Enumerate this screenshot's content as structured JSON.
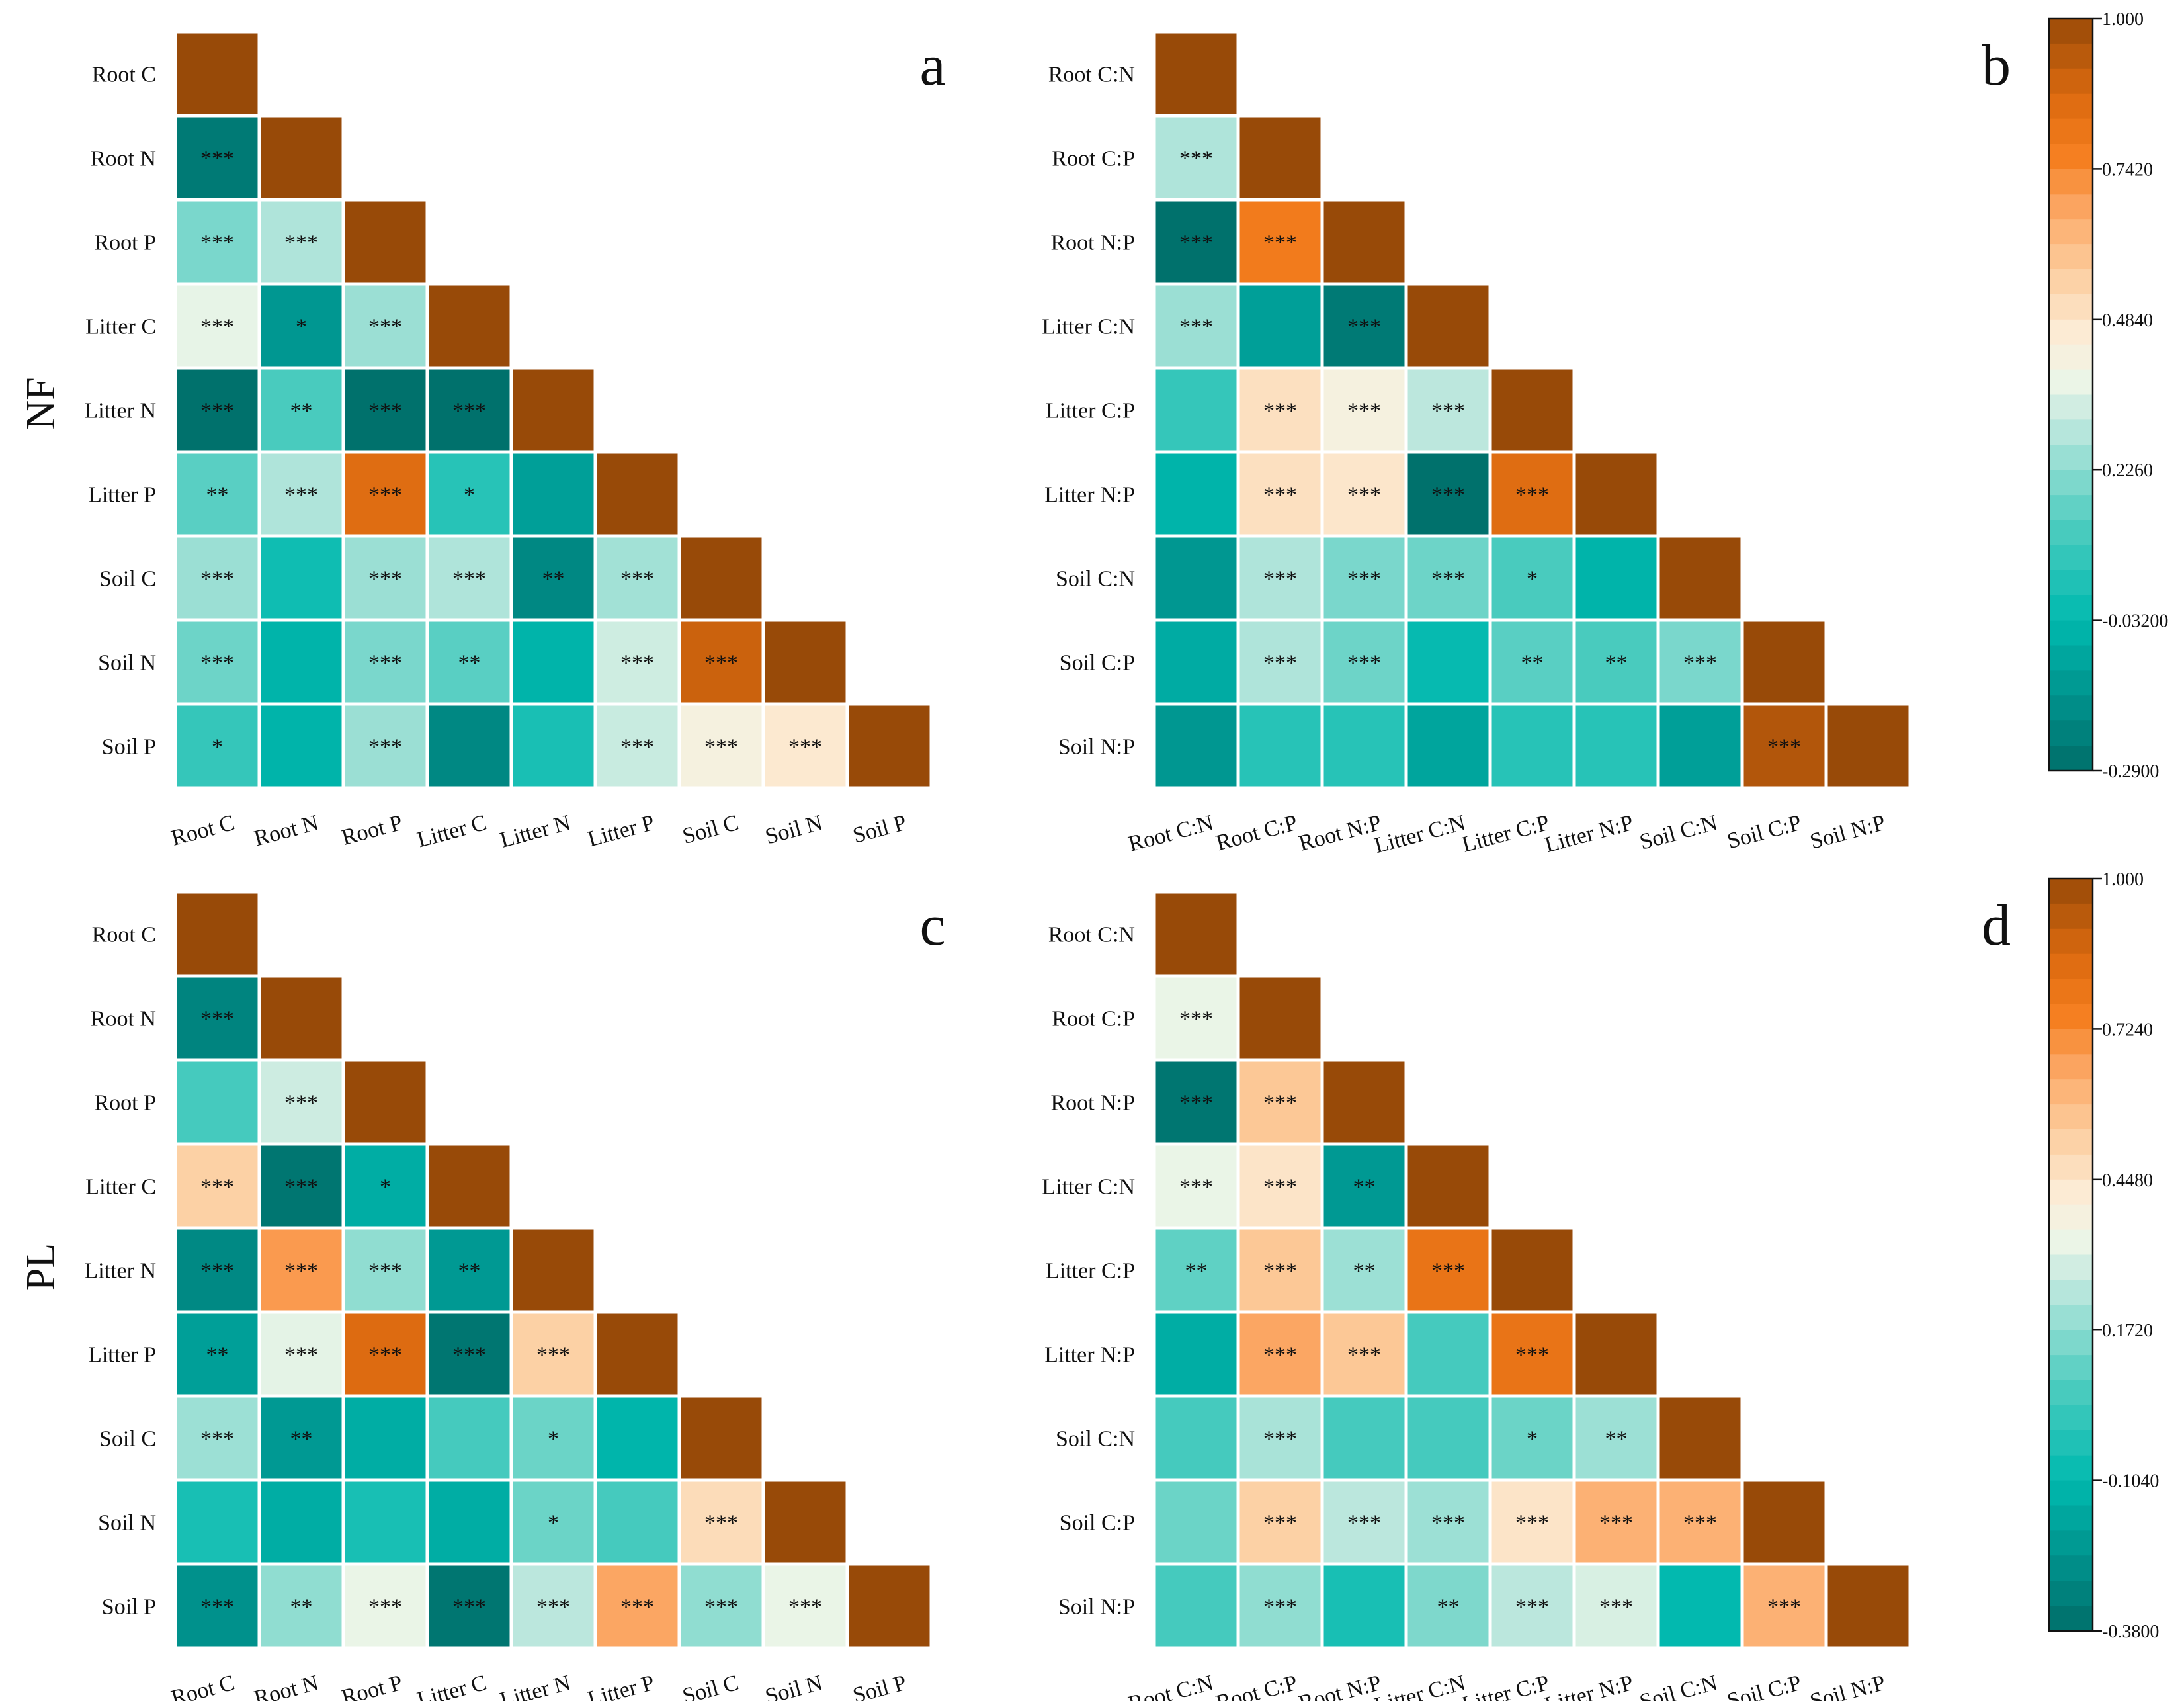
{
  "row_titles": [
    "NF",
    "PL"
  ],
  "chart_data": [
    {
      "type": "heatmap",
      "panel": "a",
      "labels": [
        "Root C",
        "Root N",
        "Root P",
        "Litter C",
        "Litter N",
        "Litter P",
        "Soil C",
        "Soil N",
        "Soil P"
      ],
      "values": [
        [
          1.0
        ],
        [
          -0.25,
          1.0
        ],
        [
          0.2,
          0.28,
          1.0
        ],
        [
          0.37,
          -0.15,
          0.25,
          1.0
        ],
        [
          -0.28,
          0.12,
          -0.28,
          -0.28,
          1.0
        ],
        [
          0.15,
          0.28,
          0.85,
          0.05,
          -0.12,
          1.0
        ],
        [
          0.25,
          0.0,
          0.25,
          0.28,
          -0.2,
          0.26,
          1.0
        ],
        [
          0.18,
          -0.05,
          0.2,
          0.15,
          -0.05,
          0.33,
          0.9,
          1.0
        ],
        [
          0.08,
          -0.05,
          0.25,
          -0.2,
          0.02,
          0.32,
          0.42,
          0.47,
          1.0
        ]
      ],
      "stars": [
        [
          ""
        ],
        [
          "***",
          ""
        ],
        [
          "***",
          "***",
          ""
        ],
        [
          "***",
          "*",
          "***",
          ""
        ],
        [
          "***",
          "**",
          "***",
          "***",
          ""
        ],
        [
          "**",
          "***",
          "***",
          "*",
          "",
          ""
        ],
        [
          "***",
          "",
          "***",
          "***",
          "**",
          "***",
          ""
        ],
        [
          "***",
          "",
          "***",
          "**",
          "",
          "***",
          "***",
          ""
        ],
        [
          "*",
          "",
          "***",
          "",
          "",
          "***",
          "***",
          "***",
          ""
        ]
      ],
      "colorbar": {
        "min": -0.29,
        "max": 1.0,
        "ticks": [
          "1.000",
          "0.7420",
          "0.4840",
          "0.2260",
          "-0.03200",
          "-0.2900"
        ]
      }
    },
    {
      "type": "heatmap",
      "panel": "b",
      "labels": [
        "Root C:N",
        "Root C:P",
        "Root N:P",
        "Litter C:N",
        "Litter C:P",
        "Litter N:P",
        "Soil C:N",
        "Soil C:P",
        "Soil N:P"
      ],
      "values": [
        [
          1.0
        ],
        [
          0.28,
          1.0
        ],
        [
          -0.28,
          0.78,
          1.0
        ],
        [
          0.25,
          -0.12,
          -0.25,
          1.0
        ],
        [
          0.08,
          0.5,
          0.42,
          0.3,
          1.0
        ],
        [
          -0.05,
          0.5,
          0.48,
          -0.28,
          0.85,
          1.0
        ],
        [
          -0.15,
          0.28,
          0.2,
          0.18,
          0.12,
          -0.05,
          1.0
        ],
        [
          -0.08,
          0.28,
          0.18,
          -0.02,
          0.15,
          0.12,
          0.2,
          1.0
        ],
        [
          -0.15,
          0.05,
          0.05,
          -0.1,
          0.05,
          0.05,
          -0.12,
          0.95,
          1.0
        ]
      ],
      "stars": [
        [
          ""
        ],
        [
          "***",
          ""
        ],
        [
          "***",
          "***",
          ""
        ],
        [
          "***",
          "",
          "***",
          ""
        ],
        [
          "",
          "***",
          "***",
          "***",
          ""
        ],
        [
          "",
          "***",
          "***",
          "***",
          "***",
          ""
        ],
        [
          "",
          "***",
          "***",
          "***",
          "*",
          "",
          ""
        ],
        [
          "",
          "***",
          "***",
          "",
          "**",
          "**",
          "***",
          ""
        ],
        [
          "",
          "",
          "",
          "",
          "",
          "",
          "",
          "***",
          ""
        ]
      ],
      "colorbar": {
        "min": -0.29,
        "max": 1.0,
        "ticks": [
          "1.000",
          "0.7420",
          "0.4840",
          "0.2260",
          "-0.03200",
          "-0.2900"
        ]
      }
    },
    {
      "type": "heatmap",
      "panel": "c",
      "labels": [
        "Root C",
        "Root N",
        "Root P",
        "Litter C",
        "Litter N",
        "Litter P",
        "Soil C",
        "Soil N",
        "Soil P"
      ],
      "values": [
        [
          1.0
        ],
        [
          -0.3,
          1.0
        ],
        [
          0.05,
          0.28,
          1.0
        ],
        [
          0.52,
          -0.35,
          -0.15,
          1.0
        ],
        [
          -0.28,
          0.68,
          0.18,
          -0.22,
          1.0
        ],
        [
          -0.2,
          0.32,
          0.85,
          -0.35,
          0.52,
          1.0
        ],
        [
          0.2,
          -0.22,
          -0.15,
          0.05,
          0.12,
          -0.12,
          1.0
        ],
        [
          -0.05,
          -0.15,
          -0.05,
          -0.15,
          0.12,
          0.05,
          0.48,
          1.0
        ],
        [
          -0.25,
          0.18,
          0.33,
          -0.35,
          0.25,
          0.65,
          0.18,
          0.33,
          1.0
        ]
      ],
      "stars": [
        [
          ""
        ],
        [
          "***",
          ""
        ],
        [
          "",
          "***",
          ""
        ],
        [
          "***",
          "***",
          "*",
          ""
        ],
        [
          "***",
          "***",
          "***",
          "**",
          ""
        ],
        [
          "**",
          "***",
          "***",
          "***",
          "***",
          ""
        ],
        [
          "***",
          "**",
          "",
          "",
          "*",
          "",
          ""
        ],
        [
          "",
          "",
          "",
          "",
          "*",
          "",
          "***",
          ""
        ],
        [
          "***",
          "**",
          "***",
          "***",
          "***",
          "***",
          "***",
          "***",
          ""
        ]
      ],
      "colorbar": {
        "min": -0.38,
        "max": 1.0,
        "ticks": [
          "1.000",
          "0.7240",
          "0.4480",
          "0.1720",
          "-0.1040",
          "-0.3800"
        ]
      }
    },
    {
      "type": "heatmap",
      "panel": "d",
      "labels": [
        "Root C:N",
        "Root C:P",
        "Root N:P",
        "Litter C:N",
        "Litter C:P",
        "Litter N:P",
        "Soil C:N",
        "Soil C:P",
        "Soil N:P"
      ],
      "values": [
        [
          1.0
        ],
        [
          0.33,
          1.0
        ],
        [
          -0.35,
          0.55,
          1.0
        ],
        [
          0.33,
          0.45,
          -0.22,
          1.0
        ],
        [
          0.1,
          0.55,
          0.2,
          0.8,
          1.0
        ],
        [
          -0.15,
          0.65,
          0.55,
          0.05,
          0.8,
          1.0
        ],
        [
          0.05,
          0.22,
          0.05,
          0.05,
          0.12,
          0.2,
          1.0
        ],
        [
          0.12,
          0.52,
          0.25,
          0.2,
          0.45,
          0.62,
          0.62,
          1.0
        ],
        [
          0.05,
          0.18,
          -0.05,
          0.15,
          0.25,
          0.3,
          -0.1,
          0.62,
          1.0
        ]
      ],
      "stars": [
        [
          ""
        ],
        [
          "***",
          ""
        ],
        [
          "***",
          "***",
          ""
        ],
        [
          "***",
          "***",
          "**",
          ""
        ],
        [
          "**",
          "***",
          "**",
          "***",
          ""
        ],
        [
          "",
          "***",
          "***",
          "",
          "***",
          ""
        ],
        [
          "",
          "***",
          "",
          "",
          "*",
          "**",
          ""
        ],
        [
          "",
          "***",
          "***",
          "***",
          "***",
          "***",
          "***",
          ""
        ],
        [
          "",
          "***",
          "",
          "**",
          "***",
          "***",
          "",
          "***",
          ""
        ]
      ],
      "colorbar": {
        "min": -0.38,
        "max": 1.0,
        "ticks": [
          "1.000",
          "0.7240",
          "0.4480",
          "0.1720",
          "-0.1040",
          "-0.3800"
        ]
      }
    }
  ]
}
